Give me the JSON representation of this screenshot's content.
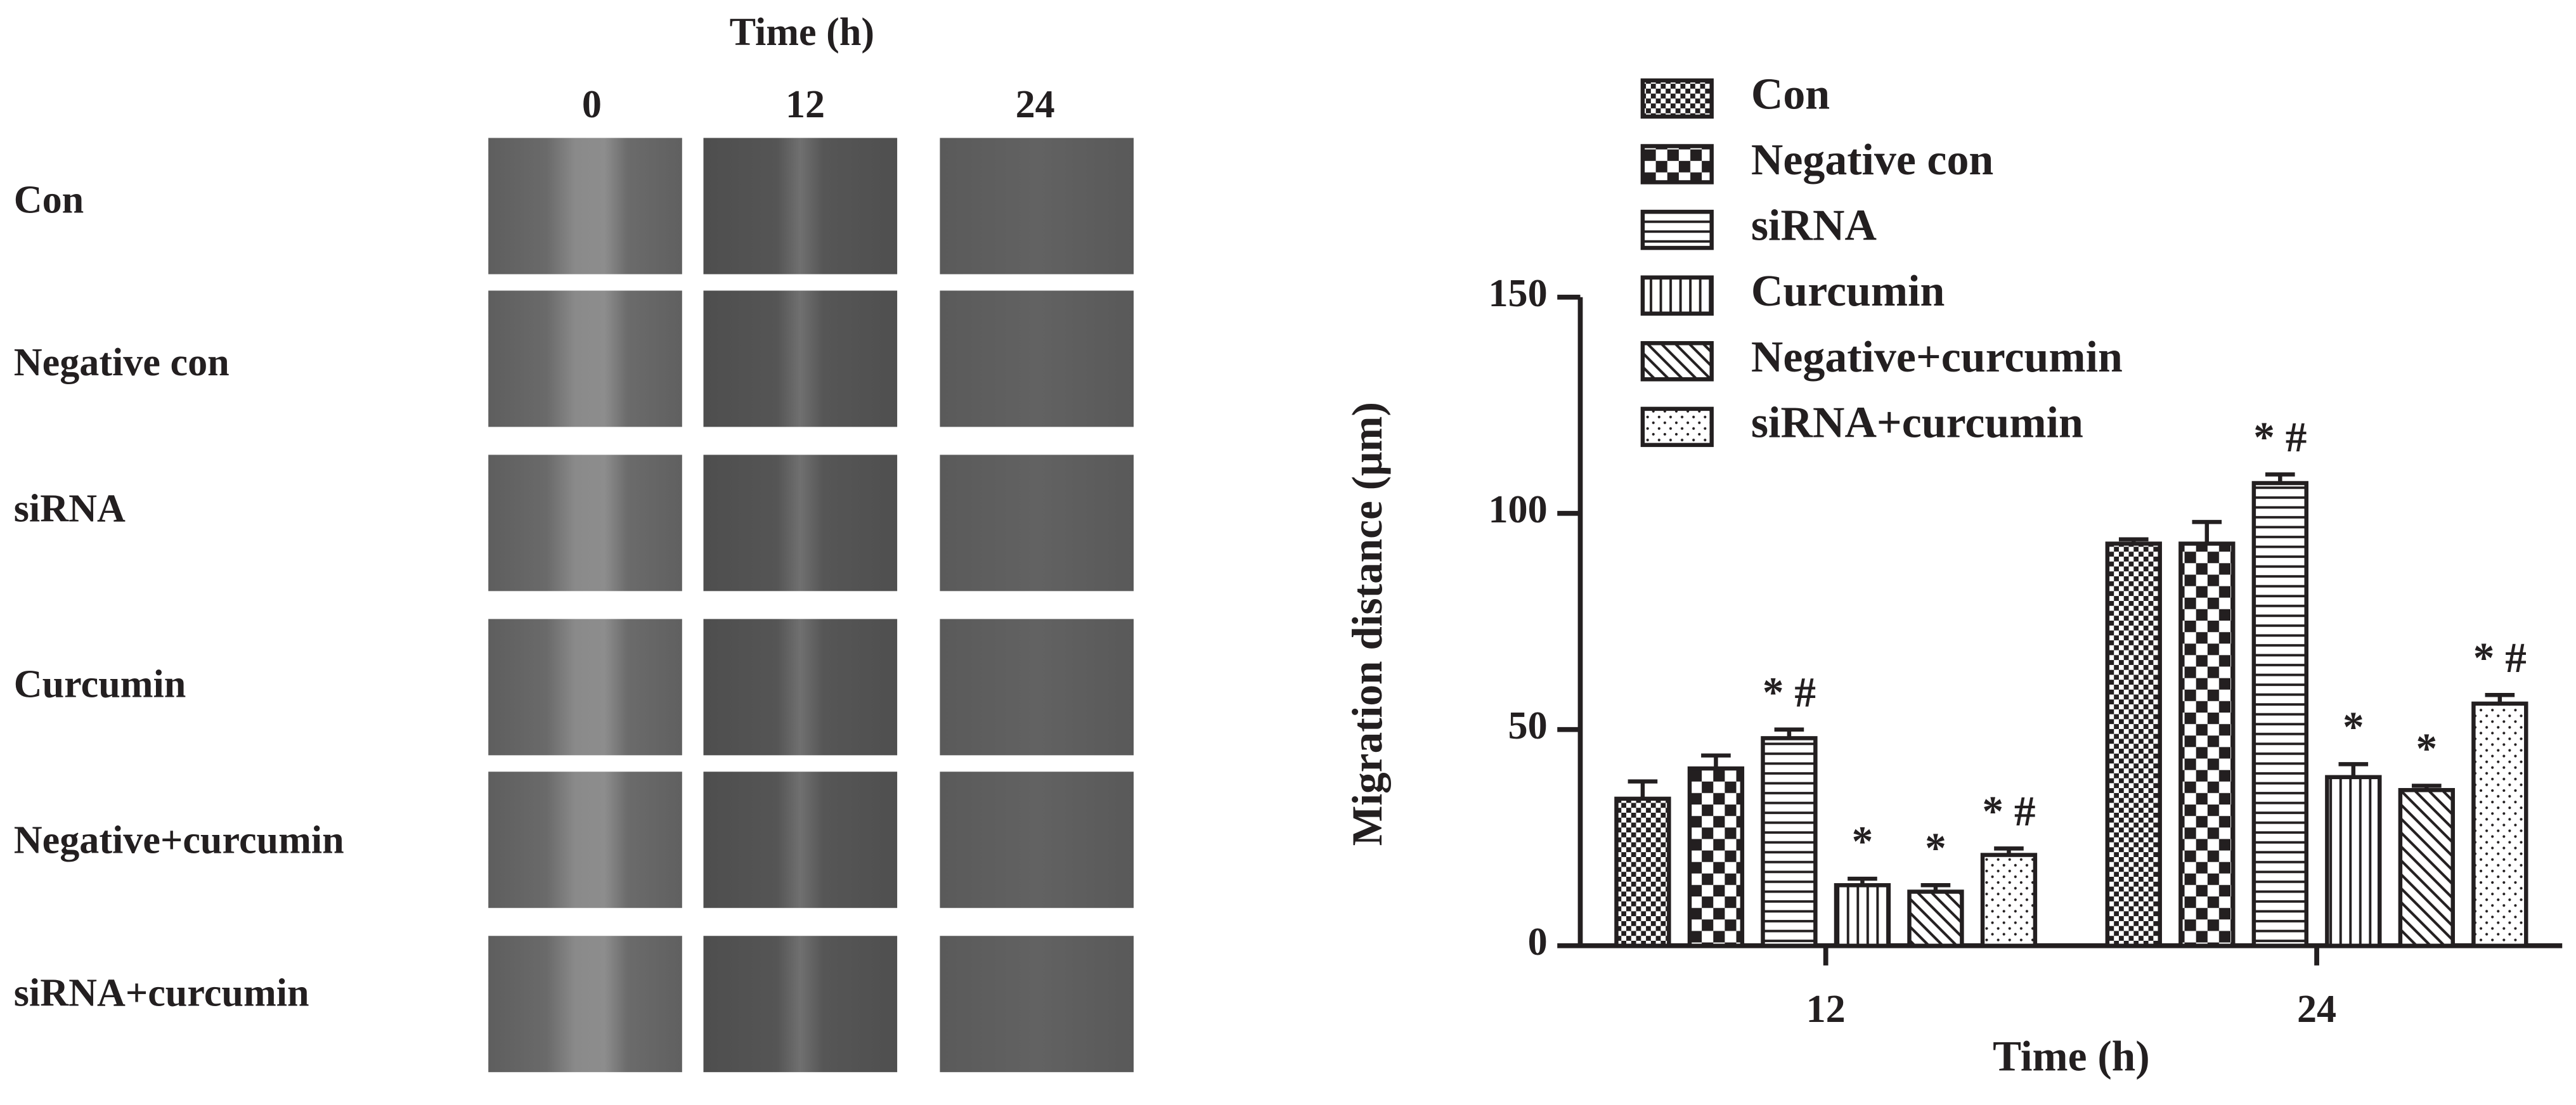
{
  "image_panel": {
    "title": "Time (h)",
    "columns": [
      "0",
      "12",
      "24"
    ],
    "rows": [
      "Con",
      "Negative con",
      "siRNA",
      "Curcumin",
      "Negative+curcumin",
      "siRNA+curcumin"
    ]
  },
  "chart_data": {
    "type": "bar",
    "x_label": "Time (h)",
    "y_label": "Migration distance (μm)",
    "categories": [
      "12",
      "24"
    ],
    "ylim": [
      0,
      150
    ],
    "yticks": [
      0,
      50,
      100,
      150
    ],
    "grid": false,
    "legend": "top-left",
    "series": [
      {
        "name": "Con",
        "color": "#231f20",
        "pattern": "checker-small",
        "values": [
          34,
          93
        ],
        "errors": [
          4,
          1
        ],
        "annotations": [
          null,
          null
        ]
      },
      {
        "name": "Negative con",
        "color": "#231f20",
        "pattern": "checker-large",
        "values": [
          41,
          93
        ],
        "errors": [
          3,
          5
        ],
        "annotations": [
          null,
          null
        ]
      },
      {
        "name": "siRNA",
        "color": "#231f20",
        "pattern": "hlines",
        "values": [
          48,
          107
        ],
        "errors": [
          2,
          2
        ],
        "annotations": [
          "* #",
          "* #"
        ]
      },
      {
        "name": "Curcumin",
        "color": "#231f20",
        "pattern": "vlines",
        "values": [
          14,
          39
        ],
        "errors": [
          1.5,
          3
        ],
        "annotations": [
          "*",
          "*"
        ]
      },
      {
        "name": "Negative+curcumin",
        "color": "#231f20",
        "pattern": "diagonal",
        "values": [
          12.5,
          36
        ],
        "errors": [
          1.5,
          1
        ],
        "annotations": [
          "*",
          "*"
        ]
      },
      {
        "name": "siRNA+curcumin",
        "color": "#231f20",
        "pattern": "dots",
        "values": [
          21,
          56
        ],
        "errors": [
          1.5,
          2
        ],
        "annotations": [
          "* #",
          "* #"
        ]
      }
    ]
  }
}
